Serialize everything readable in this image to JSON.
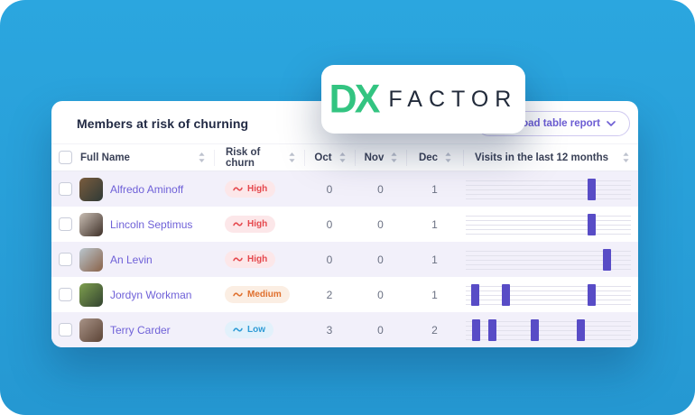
{
  "theme": {
    "background_blue": "#2BA6DF",
    "background_blue_deep": "#2598D2",
    "bar_purple": "#584CC6",
    "name_link": "#6F61D8",
    "button_purple": "#6C5DD3",
    "row_stripe": "#F2F0FA",
    "gridline": "#E2E1EC",
    "risk_high_text": "#E5484D",
    "risk_high_bg": "#FCE7E9",
    "risk_medium_text": "#E0702E",
    "risk_medium_bg": "#FBEEE3",
    "risk_low_text": "#2E9BD6",
    "risk_low_bg": "#E2F1FB",
    "logo_green": "#33C481",
    "logo_dark": "#222B3B"
  },
  "logo": {
    "dx": "DX",
    "factor": "FACTOR"
  },
  "icons": {
    "sort": "up-down-sort-arrows",
    "download_chevron": "chevron-down",
    "risk_trend": "trend-wave"
  },
  "card": {
    "title": "Members at risk of churning",
    "download_button": {
      "label": "Download table report"
    }
  },
  "table": {
    "columns": [
      {
        "key": "name",
        "label": "Full Name",
        "sortable": true
      },
      {
        "key": "risk",
        "label": "Risk of churn",
        "sortable": true
      },
      {
        "key": "oct",
        "label": "Oct",
        "sortable": true
      },
      {
        "key": "nov",
        "label": "Nov",
        "sortable": true
      },
      {
        "key": "dec",
        "label": "Dec",
        "sortable": true
      },
      {
        "key": "visits",
        "label": "Visits in the last 12 months",
        "sortable": true
      }
    ],
    "rows": [
      {
        "name": "Alfredo Aminoff",
        "risk_label": "High",
        "risk_level": "high",
        "oct": "0",
        "nov": "0",
        "dec": "1",
        "visit_bars": [
          0.773
        ],
        "avatar_colors": [
          "#7A5C3E",
          "#2F3A36"
        ]
      },
      {
        "name": "Lincoln Septimus",
        "risk_label": "High",
        "risk_level": "high",
        "oct": "0",
        "nov": "0",
        "dec": "1",
        "visit_bars": [
          0.778
        ],
        "avatar_colors": [
          "#C9BEB4",
          "#3E3028"
        ]
      },
      {
        "name": "An Levin",
        "risk_label": "High",
        "risk_level": "high",
        "oct": "0",
        "nov": "0",
        "dec": "1",
        "visit_bars": [
          0.876
        ],
        "avatar_colors": [
          "#B9C6CE",
          "#8A6248"
        ]
      },
      {
        "name": "Jordyn Workman",
        "risk_label": "Medium",
        "risk_level": "medium",
        "oct": "2",
        "nov": "0",
        "dec": "1",
        "visit_bars": [
          0.032,
          0.232,
          0.773
        ],
        "avatar_colors": [
          "#7FA04F",
          "#32432F"
        ]
      },
      {
        "name": "Terry Carder",
        "risk_label": "Low",
        "risk_level": "low",
        "oct": "3",
        "nov": "0",
        "dec": "2",
        "visit_bars": [
          0.038,
          0.146,
          0.411,
          0.708
        ],
        "avatar_colors": [
          "#A89387",
          "#5C4436"
        ]
      }
    ]
  }
}
